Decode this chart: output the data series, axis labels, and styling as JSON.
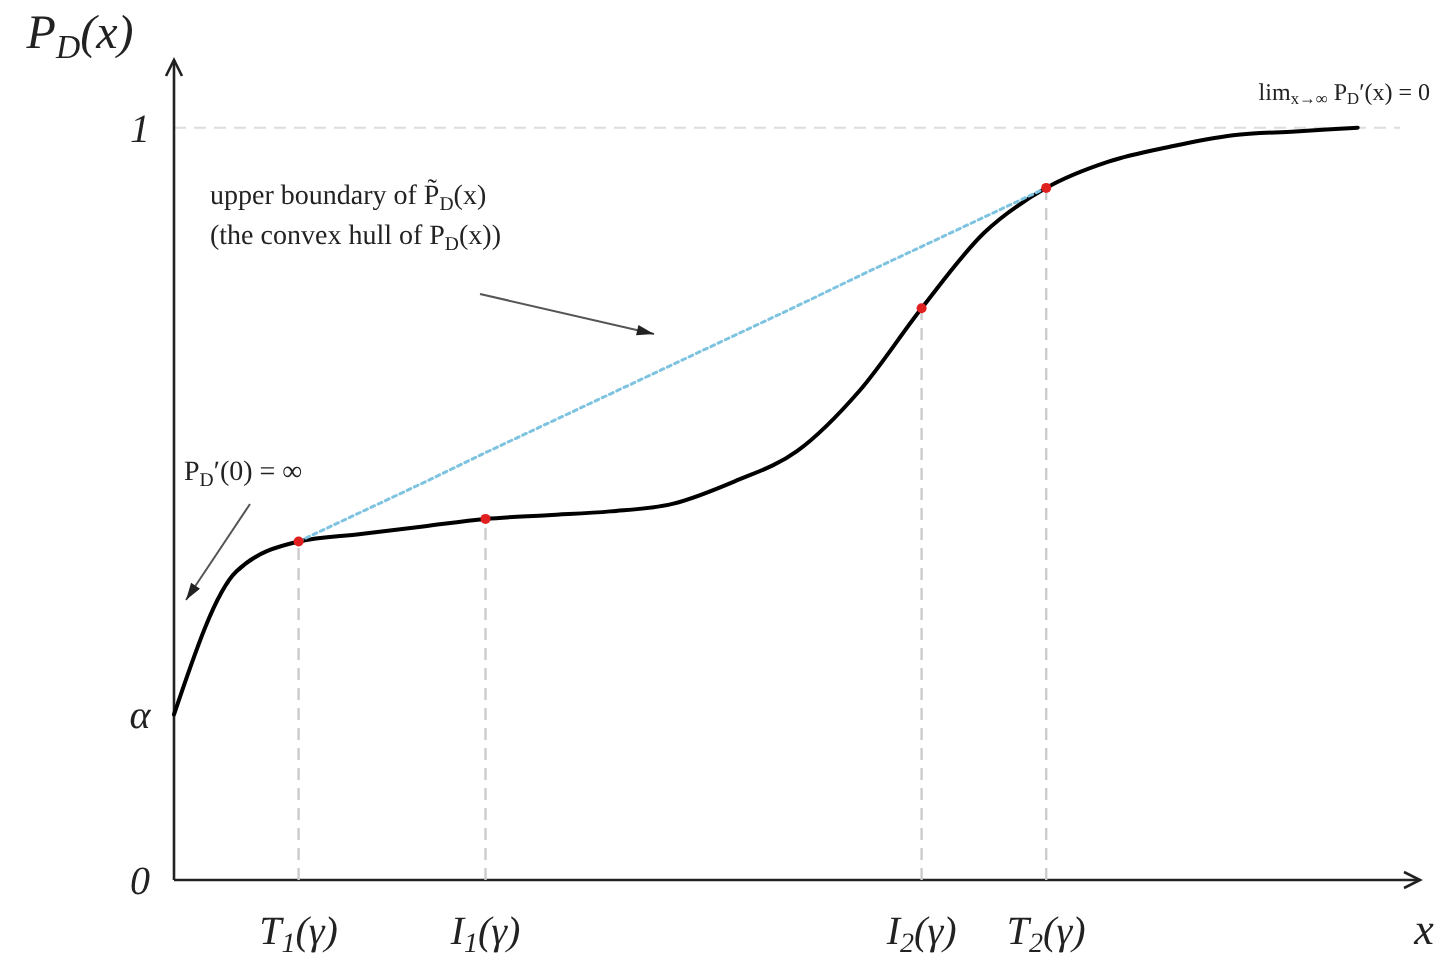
{
  "chart_data": {
    "type": "line",
    "xlabel": "x",
    "ylabel": "P$_{D}$(x)",
    "categories": [
      null,
      null,
      "T$_{1}$(γ)",
      null,
      null,
      "I$_{1}$(γ)",
      null,
      null,
      null,
      null,
      null,
      null,
      "I$_{2}$(γ)",
      null,
      "T$_{2}$(γ)",
      null,
      null,
      null,
      null,
      null
    ],
    "ylim": [
      0,
      1.09
    ],
    "yticks": [
      0,
      {
        "value": 0.22,
        "label": "α"
      },
      1
    ],
    "series": [
      {
        "color": "#000000",
        "values": [
          0.22,
          0.41,
          0.45,
          0.46,
          0.47,
          0.48,
          0.485,
          0.49,
          0.5,
          0.53,
          0.57,
          0.65,
          0.76,
          0.86,
          0.92,
          0.955,
          0.975,
          0.99,
          0.995,
          1.0
        ]
      },
      {
        "color": "#7ec4e0",
        "line_style": "dotted",
        "values": [
          null,
          null,
          0.45,
          0.489,
          0.528,
          0.568,
          0.607,
          0.646,
          0.685,
          0.724,
          0.763,
          0.803,
          0.842,
          0.881,
          0.92,
          null,
          null,
          null,
          null,
          null
        ]
      },
      {
        "type": "lollipop",
        "color": "#e02020",
        "marker": "circle",
        "values": [
          null,
          null,
          0.45,
          null,
          null,
          0.48,
          null,
          null,
          null,
          null,
          null,
          null,
          0.76,
          null,
          0.92,
          null,
          null,
          null,
          null,
          null
        ]
      }
    ],
    "ref_lines": [
      {
        "axis": "y",
        "value": 1,
        "color": "#dddddd",
        "line_style": "dashed"
      }
    ],
    "annotations": [
      "upper boundary of P̃$_{D}$(x)\n(the convex hull of P$_{D}$(x))",
      "P$_{D}$′(0) = ∞",
      "lim$_{x→∞}$ P$_{D}$′(x) = 0"
    ]
  }
}
